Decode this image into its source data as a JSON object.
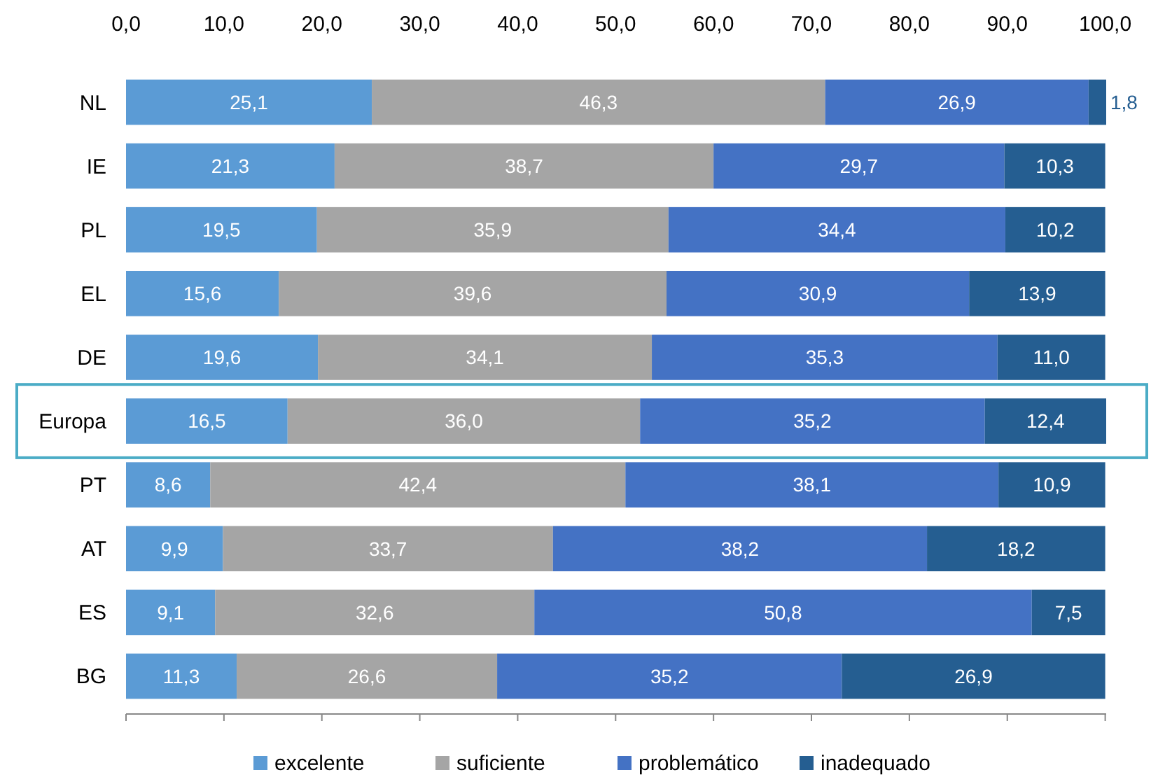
{
  "chart_data": {
    "type": "bar",
    "orientation": "horizontal",
    "stacked": true,
    "categories": [
      "NL",
      "IE",
      "PL",
      "EL",
      "DE",
      "Europa",
      "PT",
      "AT",
      "ES",
      "BG"
    ],
    "series": [
      {
        "name": "excelente",
        "color": "#5b9bd5",
        "values": [
          25.1,
          21.3,
          19.5,
          15.6,
          19.6,
          16.5,
          8.6,
          9.9,
          9.1,
          11.3
        ],
        "value_labels": [
          "25,1",
          "21,3",
          "19,5",
          "15,6",
          "19,6",
          "16,5",
          "8,6",
          "9,9",
          "9,1",
          "11,3"
        ]
      },
      {
        "name": "suficiente",
        "color": "#a5a5a5",
        "values": [
          46.3,
          38.7,
          35.9,
          39.6,
          34.1,
          36.0,
          42.4,
          33.7,
          32.6,
          26.6
        ],
        "value_labels": [
          "46,3",
          "38,7",
          "35,9",
          "39,6",
          "34,1",
          "36,0",
          "42,4",
          "33,7",
          "32,6",
          "26,6"
        ]
      },
      {
        "name": "problemático",
        "color": "#4472c4",
        "values": [
          26.9,
          29.7,
          34.4,
          30.9,
          35.3,
          35.2,
          38.1,
          38.2,
          50.8,
          35.2
        ],
        "value_labels": [
          "26,9",
          "29,7",
          "34,4",
          "30,9",
          "35,3",
          "35,2",
          "38,1",
          "38,2",
          "50,8",
          "35,2"
        ]
      },
      {
        "name": "inadequado",
        "color": "#255e91",
        "values": [
          1.8,
          10.3,
          10.2,
          13.9,
          11.0,
          12.4,
          10.9,
          18.2,
          7.5,
          26.9
        ],
        "value_labels": [
          "1,8",
          "10,3",
          "10,2",
          "13,9",
          "11,0",
          "12,4",
          "10,9",
          "18,2",
          "7,5",
          "26,9"
        ]
      }
    ],
    "xlim": [
      0,
      100.1
    ],
    "xticks": [
      {
        "value": 0,
        "label": "0,0"
      },
      {
        "value": 10,
        "label": "10,0"
      },
      {
        "value": 20,
        "label": "20,0"
      },
      {
        "value": 30,
        "label": "30,0"
      },
      {
        "value": 40,
        "label": "40,0"
      },
      {
        "value": 50,
        "label": "50,0"
      },
      {
        "value": 60,
        "label": "60,0"
      },
      {
        "value": 70,
        "label": "70,0"
      },
      {
        "value": 80,
        "label": "80,0"
      },
      {
        "value": 90,
        "label": "90,0"
      },
      {
        "value": 100,
        "label": "100,0"
      }
    ],
    "grid": false,
    "legend": "bottom"
  }
}
